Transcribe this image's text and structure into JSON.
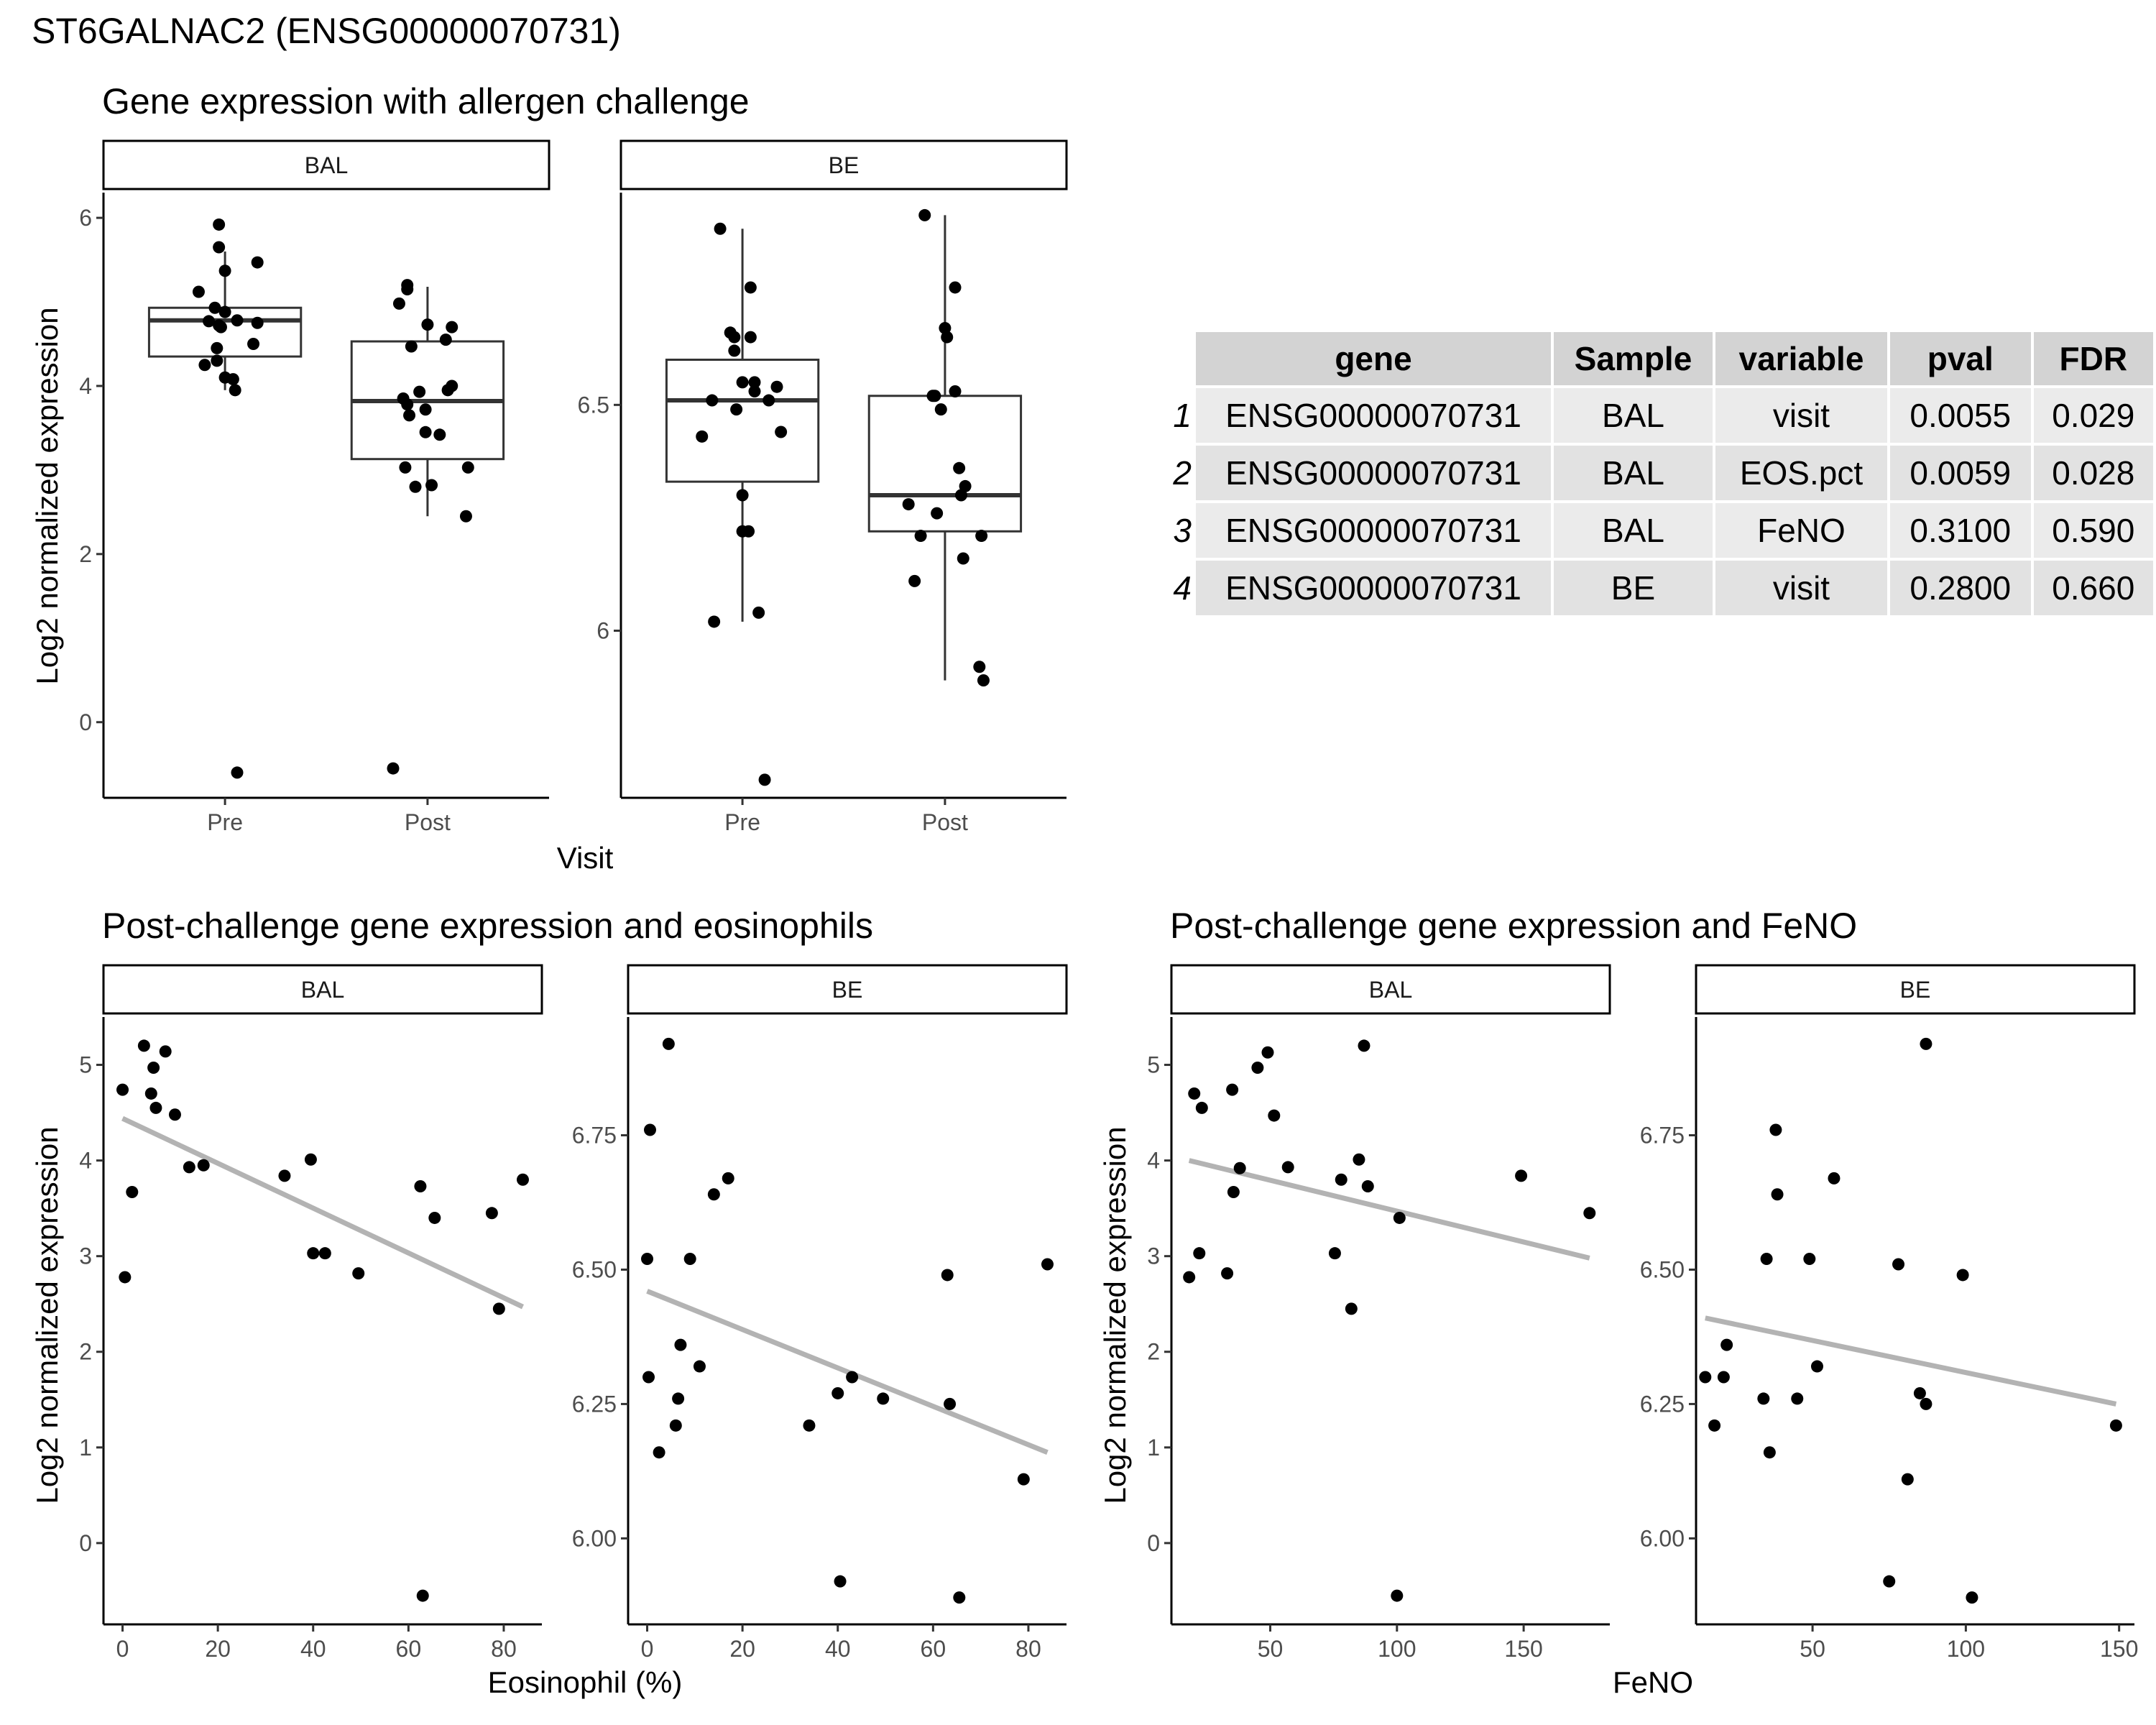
{
  "page_title": "ST6GALNAC2 (ENSG00000070731)",
  "sections": {
    "allergen": "Gene expression with allergen challenge",
    "eos": "Post-challenge gene expression and eosinophils",
    "feno": "Post-challenge gene expression and FeNO"
  },
  "colors": {
    "points": "#000000",
    "box": "#333333",
    "fit_line": "#b3b3b3",
    "strip_fill": "#ffffff",
    "table_header": "#d3d3d3"
  },
  "table": {
    "headers": [
      "gene",
      "Sample",
      "variable",
      "pval",
      "FDR"
    ],
    "rows": [
      {
        "n": "1",
        "gene": "ENSG00000070731",
        "sample": "BAL",
        "variable": "visit",
        "pval": "0.0055",
        "fdr": "0.029"
      },
      {
        "n": "2",
        "gene": "ENSG00000070731",
        "sample": "BAL",
        "variable": "EOS.pct",
        "pval": "0.0059",
        "fdr": "0.028"
      },
      {
        "n": "3",
        "gene": "ENSG00000070731",
        "sample": "BAL",
        "variable": "FeNO",
        "pval": "0.3100",
        "fdr": "0.590"
      },
      {
        "n": "4",
        "gene": "ENSG00000070731",
        "sample": "BE",
        "variable": "visit",
        "pval": "0.2800",
        "fdr": "0.660"
      }
    ]
  },
  "chart_data": [
    {
      "id": "box-bal",
      "type": "box",
      "facet": "BAL",
      "xlabel": "Visit",
      "ylabel": "Log2 normalized expression",
      "categories": [
        "Pre",
        "Post"
      ],
      "ylim": [
        -0.9,
        6.3
      ],
      "yticks": [
        0,
        2,
        4,
        6
      ],
      "boxes": [
        {
          "q1": 4.35,
          "median": 4.78,
          "q3": 4.93,
          "lower": 3.95,
          "upper": 5.6
        },
        {
          "q1": 3.13,
          "median": 3.82,
          "q3": 4.53,
          "lower": 2.45,
          "upper": 5.18
        }
      ],
      "points": [
        {
          "cat": 0,
          "dx": -0.03,
          "y": 5.92
        },
        {
          "cat": 0,
          "dx": -0.03,
          "y": 5.65
        },
        {
          "cat": 0,
          "dx": 0.0,
          "y": 5.37
        },
        {
          "cat": 0,
          "dx": 0.16,
          "y": 5.47
        },
        {
          "cat": 0,
          "dx": -0.13,
          "y": 5.12
        },
        {
          "cat": 0,
          "dx": -0.05,
          "y": 4.93
        },
        {
          "cat": 0,
          "dx": 0.0,
          "y": 4.88
        },
        {
          "cat": 0,
          "dx": -0.03,
          "y": 4.72
        },
        {
          "cat": 0,
          "dx": 0.06,
          "y": 4.78
        },
        {
          "cat": 0,
          "dx": -0.08,
          "y": 4.77
        },
        {
          "cat": 0,
          "dx": 0.16,
          "y": 4.75
        },
        {
          "cat": 0,
          "dx": -0.02,
          "y": 4.7
        },
        {
          "cat": 0,
          "dx": -0.04,
          "y": 4.45
        },
        {
          "cat": 0,
          "dx": 0.14,
          "y": 4.5
        },
        {
          "cat": 0,
          "dx": -0.1,
          "y": 4.25
        },
        {
          "cat": 0,
          "dx": -0.04,
          "y": 4.3
        },
        {
          "cat": 0,
          "dx": 0.0,
          "y": 4.1
        },
        {
          "cat": 0,
          "dx": 0.04,
          "y": 4.08
        },
        {
          "cat": 0,
          "dx": 0.05,
          "y": 3.95
        },
        {
          "cat": 0,
          "dx": 0.06,
          "y": -0.6
        },
        {
          "cat": 1,
          "dx": -0.1,
          "y": 5.2
        },
        {
          "cat": 1,
          "dx": -0.1,
          "y": 5.15
        },
        {
          "cat": 1,
          "dx": -0.14,
          "y": 4.98
        },
        {
          "cat": 1,
          "dx": 0.0,
          "y": 4.73
        },
        {
          "cat": 1,
          "dx": 0.12,
          "y": 4.7
        },
        {
          "cat": 1,
          "dx": 0.09,
          "y": 4.55
        },
        {
          "cat": 1,
          "dx": -0.08,
          "y": 4.47
        },
        {
          "cat": 1,
          "dx": 0.12,
          "y": 4.0
        },
        {
          "cat": 1,
          "dx": 0.1,
          "y": 3.95
        },
        {
          "cat": 1,
          "dx": -0.04,
          "y": 3.93
        },
        {
          "cat": 1,
          "dx": -0.12,
          "y": 3.85
        },
        {
          "cat": 1,
          "dx": -0.1,
          "y": 3.78
        },
        {
          "cat": 1,
          "dx": -0.01,
          "y": 3.72
        },
        {
          "cat": 1,
          "dx": -0.09,
          "y": 3.65
        },
        {
          "cat": 1,
          "dx": -0.01,
          "y": 3.45
        },
        {
          "cat": 1,
          "dx": 0.06,
          "y": 3.42
        },
        {
          "cat": 1,
          "dx": -0.11,
          "y": 3.03
        },
        {
          "cat": 1,
          "dx": 0.2,
          "y": 3.03
        },
        {
          "cat": 1,
          "dx": 0.02,
          "y": 2.82
        },
        {
          "cat": 1,
          "dx": -0.06,
          "y": 2.8
        },
        {
          "cat": 1,
          "dx": 0.19,
          "y": 2.45
        },
        {
          "cat": 1,
          "dx": -0.17,
          "y": -0.55
        }
      ]
    },
    {
      "id": "box-be",
      "type": "box",
      "facet": "BE",
      "xlabel": "Visit",
      "ylabel": "Log2 normalized expression",
      "categories": [
        "Pre",
        "Post"
      ],
      "ylim": [
        5.63,
        6.97
      ],
      "yticks": [
        6.0,
        6.5
      ],
      "boxes": [
        {
          "q1": 6.33,
          "median": 6.51,
          "q3": 6.6,
          "lower": 6.02,
          "upper": 6.89
        },
        {
          "q1": 6.22,
          "median": 6.3,
          "q3": 6.52,
          "lower": 5.89,
          "upper": 6.92
        }
      ],
      "points": [
        {
          "cat": 0,
          "dx": -0.11,
          "y": 6.89
        },
        {
          "cat": 0,
          "dx": 0.04,
          "y": 6.76
        },
        {
          "cat": 0,
          "dx": -0.06,
          "y": 6.66
        },
        {
          "cat": 0,
          "dx": -0.04,
          "y": 6.65
        },
        {
          "cat": 0,
          "dx": 0.04,
          "y": 6.65
        },
        {
          "cat": 0,
          "dx": -0.04,
          "y": 6.62
        },
        {
          "cat": 0,
          "dx": 0.0,
          "y": 6.55
        },
        {
          "cat": 0,
          "dx": 0.06,
          "y": 6.55
        },
        {
          "cat": 0,
          "dx": 0.17,
          "y": 6.54
        },
        {
          "cat": 0,
          "dx": 0.06,
          "y": 6.53
        },
        {
          "cat": 0,
          "dx": -0.15,
          "y": 6.51
        },
        {
          "cat": 0,
          "dx": 0.13,
          "y": 6.51
        },
        {
          "cat": 0,
          "dx": -0.03,
          "y": 6.49
        },
        {
          "cat": 0,
          "dx": 0.19,
          "y": 6.44
        },
        {
          "cat": 0,
          "dx": -0.2,
          "y": 6.43
        },
        {
          "cat": 0,
          "dx": 0.0,
          "y": 6.3
        },
        {
          "cat": 0,
          "dx": 0.0,
          "y": 6.22
        },
        {
          "cat": 0,
          "dx": 0.03,
          "y": 6.22
        },
        {
          "cat": 0,
          "dx": 0.08,
          "y": 6.04
        },
        {
          "cat": 0,
          "dx": -0.14,
          "y": 6.02
        },
        {
          "cat": 0,
          "dx": 0.11,
          "y": 5.67
        },
        {
          "cat": 1,
          "dx": -0.1,
          "y": 6.92
        },
        {
          "cat": 1,
          "dx": 0.05,
          "y": 6.76
        },
        {
          "cat": 1,
          "dx": 0.0,
          "y": 6.67
        },
        {
          "cat": 1,
          "dx": 0.01,
          "y": 6.65
        },
        {
          "cat": 1,
          "dx": -0.06,
          "y": 6.52
        },
        {
          "cat": 1,
          "dx": 0.05,
          "y": 6.53
        },
        {
          "cat": 1,
          "dx": -0.05,
          "y": 6.52
        },
        {
          "cat": 1,
          "dx": -0.02,
          "y": 6.49
        },
        {
          "cat": 1,
          "dx": 0.07,
          "y": 6.36
        },
        {
          "cat": 1,
          "dx": 0.1,
          "y": 6.32
        },
        {
          "cat": 1,
          "dx": 0.08,
          "y": 6.3
        },
        {
          "cat": 1,
          "dx": -0.18,
          "y": 6.28
        },
        {
          "cat": 1,
          "dx": -0.04,
          "y": 6.26
        },
        {
          "cat": 1,
          "dx": 0.18,
          "y": 6.21
        },
        {
          "cat": 1,
          "dx": -0.12,
          "y": 6.21
        },
        {
          "cat": 1,
          "dx": 0.09,
          "y": 6.16
        },
        {
          "cat": 1,
          "dx": -0.15,
          "y": 6.11
        },
        {
          "cat": 1,
          "dx": 0.17,
          "y": 5.92
        },
        {
          "cat": 1,
          "dx": 0.19,
          "y": 5.89
        }
      ]
    },
    {
      "id": "eos-bal",
      "type": "scatter",
      "facet": "BAL",
      "xlabel": "Eosinophil (%)",
      "ylabel": "Log2 normalized expression",
      "xlim": [
        -4,
        88
      ],
      "xticks": [
        0,
        20,
        40,
        60,
        80
      ],
      "ylim": [
        -0.85,
        5.5
      ],
      "yticks": [
        0,
        1,
        2,
        3,
        4,
        5
      ],
      "fit": {
        "x": [
          0,
          84
        ],
        "y": [
          4.44,
          2.47
        ]
      },
      "x": [
        0,
        0.5,
        2,
        4.5,
        6,
        6.5,
        7,
        9,
        11,
        14,
        17,
        34,
        39.5,
        40,
        42.5,
        49.5,
        62.5,
        63,
        65.5,
        77.5,
        79,
        84
      ],
      "y": [
        4.74,
        2.78,
        3.67,
        5.2,
        4.7,
        4.97,
        4.55,
        5.14,
        4.48,
        3.93,
        3.95,
        3.84,
        4.01,
        3.03,
        3.03,
        2.82,
        3.73,
        -0.55,
        3.4,
        3.45,
        2.45,
        3.8
      ]
    },
    {
      "id": "eos-be",
      "type": "scatter",
      "facet": "BE",
      "xlabel": "Eosinophil (%)",
      "ylabel": "",
      "xlim": [
        -4,
        88
      ],
      "xticks": [
        0,
        20,
        40,
        60,
        80
      ],
      "ylim": [
        5.84,
        6.97
      ],
      "yticks": [
        6.0,
        6.25,
        6.5,
        6.75
      ],
      "ytick_labels": [
        "6.00",
        "6.25",
        "6.50",
        "6.75"
      ],
      "fit": {
        "x": [
          0,
          84
        ],
        "y": [
          6.46,
          6.16
        ]
      },
      "x": [
        0,
        0.3,
        0.6,
        2.5,
        4.5,
        6,
        6.5,
        7,
        9,
        11,
        14,
        17,
        34,
        40,
        40.5,
        43,
        49.5,
        63,
        63.5,
        65.5,
        79,
        84
      ],
      "y": [
        6.52,
        6.3,
        6.76,
        6.16,
        6.92,
        6.21,
        6.26,
        6.36,
        6.52,
        6.32,
        6.64,
        6.67,
        6.21,
        6.27,
        5.92,
        6.3,
        6.26,
        6.49,
        6.25,
        5.89,
        6.11,
        6.51
      ]
    },
    {
      "id": "feno-bal",
      "type": "scatter",
      "facet": "BAL",
      "xlabel": "FeNO",
      "ylabel": "Log2 normalized expression",
      "xlim": [
        11,
        184
      ],
      "xticks": [
        50,
        100,
        150
      ],
      "ylim": [
        -0.85,
        5.5
      ],
      "yticks": [
        0,
        1,
        2,
        3,
        4,
        5
      ],
      "fit": {
        "x": [
          18,
          176
        ],
        "y": [
          4.0,
          2.98
        ]
      },
      "x": [
        18,
        20,
        22,
        23,
        33,
        35,
        35.5,
        38,
        45,
        49,
        51.5,
        57,
        75.5,
        78,
        82,
        85,
        87,
        88.5,
        100,
        101,
        149,
        176
      ],
      "y": [
        2.78,
        4.7,
        3.03,
        4.55,
        2.82,
        4.74,
        3.67,
        3.92,
        4.97,
        5.13,
        4.47,
        3.93,
        3.03,
        3.8,
        2.45,
        4.01,
        5.2,
        3.73,
        -0.55,
        3.4,
        3.84,
        3.45
      ]
    },
    {
      "id": "feno-be",
      "type": "scatter",
      "facet": "BE",
      "xlabel": "FeNO",
      "ylabel": "",
      "xlim": [
        12,
        155
      ],
      "xticks": [
        50,
        100,
        150
      ],
      "ylim": [
        5.84,
        6.97
      ],
      "yticks": [
        6.0,
        6.25,
        6.5,
        6.75
      ],
      "ytick_labels": [
        "6.00",
        "6.25",
        "6.50",
        "6.75"
      ],
      "fit": {
        "x": [
          15,
          149
        ],
        "y": [
          6.41,
          6.25
        ]
      },
      "x": [
        15,
        18,
        21,
        22,
        34,
        35,
        36,
        38,
        38.5,
        45,
        49,
        51.5,
        57,
        75,
        78,
        81,
        85,
        87,
        87,
        99,
        102,
        149
      ],
      "y": [
        6.3,
        6.21,
        6.3,
        6.36,
        6.26,
        6.52,
        6.16,
        6.76,
        6.64,
        6.26,
        6.52,
        6.32,
        6.67,
        5.92,
        6.51,
        6.11,
        6.27,
        6.92,
        6.25,
        6.49,
        5.89,
        6.21
      ]
    }
  ],
  "panels": {
    "box_bal_strip": "BAL",
    "box_be_strip": "BE",
    "eos_bal_strip": "BAL",
    "eos_be_strip": "BE",
    "feno_bal_strip": "BAL",
    "feno_be_strip": "BE",
    "visit_label": "Visit",
    "eos_xlabel": "Eosinophil (%)",
    "feno_xlabel": "FeNO",
    "ylabel": "Log2 normalized expression"
  }
}
